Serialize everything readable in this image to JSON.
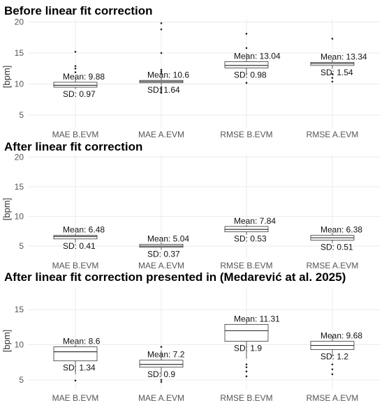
{
  "chart_data": [
    {
      "type": "boxplot",
      "title": "Before linear fit correction",
      "ylabel": "[bpm]",
      "ylim": [
        3,
        20.5
      ],
      "yticks": [
        5,
        10,
        15,
        20
      ],
      "grid": true,
      "categories": [
        "MAE B.EVM",
        "MAE A.EVM",
        "RMSE B.EVM",
        "RMSE A.EVM"
      ],
      "boxes": [
        {
          "q1": 9.5,
          "median": 9.8,
          "q3": 10.3,
          "whisker_low": 9.2,
          "whisker_high": 11.2,
          "outliers": [
            11.9,
            12.5,
            12.9,
            15.2
          ],
          "mean_label": "Mean: 9.88",
          "sd_label": "SD: 0.97"
        },
        {
          "q1": 10.2,
          "median": 10.4,
          "q3": 10.6,
          "whisker_low": 9.8,
          "whisker_high": 11.2,
          "outliers": [
            8.6,
            8.9,
            9.2,
            9.5,
            11.7,
            12.0,
            12.3,
            15.0,
            18.8,
            19.8
          ],
          "mean_label": "Mean: 10.6",
          "sd_label": "SD: 1.64"
        },
        {
          "q1": 12.6,
          "median": 13.0,
          "q3": 13.6,
          "whisker_low": 11.4,
          "whisker_high": 15.0,
          "outliers": [
            10.2,
            15.8,
            18.1
          ],
          "mean_label": "Mean: 13.04",
          "sd_label": "SD: 0.98"
        },
        {
          "q1": 13.0,
          "median": 13.3,
          "q3": 13.5,
          "whisker_low": 12.5,
          "whisker_high": 14.0,
          "outliers": [
            10.4,
            11.0,
            11.6,
            17.3
          ],
          "mean_label": "Mean: 13.34",
          "sd_label": "SD: 1.54"
        }
      ]
    },
    {
      "type": "boxplot",
      "title": "After linear fit correction",
      "ylabel": "[bpm]",
      "ylim": [
        3,
        20.5
      ],
      "yticks": [
        5,
        10,
        15,
        20
      ],
      "grid": true,
      "categories": [
        "MAE B.EVM",
        "MAE A.EVM",
        "RMSE B.EVM",
        "RMSE A.EVM"
      ],
      "boxes": [
        {
          "q1": 6.2,
          "median": 6.6,
          "q3": 6.8,
          "whisker_low": 5.6,
          "whisker_high": 7.1,
          "outliers": [],
          "mean_label": "Mean: 6.48",
          "sd_label": "SD: 0.41"
        },
        {
          "q1": 4.8,
          "median": 5.0,
          "q3": 5.3,
          "whisker_low": 4.4,
          "whisker_high": 5.6,
          "outliers": [],
          "mean_label": "Mean: 5.04",
          "sd_label": "SD: 0.37"
        },
        {
          "q1": 7.4,
          "median": 7.8,
          "q3": 8.3,
          "whisker_low": 6.9,
          "whisker_high": 8.6,
          "outliers": [],
          "mean_label": "Mean: 7.84",
          "sd_label": "SD: 0.53"
        },
        {
          "q1": 6.0,
          "median": 6.4,
          "q3": 6.8,
          "whisker_low": 5.5,
          "whisker_high": 7.2,
          "outliers": [],
          "mean_label": "Mean: 6.38",
          "sd_label": "SD: 0.51"
        }
      ]
    },
    {
      "type": "boxplot",
      "title": "After linear fit correction presented in (Medarević at al. 2025)",
      "ylabel": "[bpm]",
      "ylim": [
        3.5,
        18
      ],
      "yticks": [
        5,
        10,
        15
      ],
      "grid": true,
      "categories": [
        "MAE B.EVM",
        "MAE A.EVM",
        "RMSE B.EVM",
        "RMSE A.EVM"
      ],
      "boxes": [
        {
          "q1": 7.7,
          "median": 9.0,
          "q3": 9.7,
          "whisker_low": 5.8,
          "whisker_high": 10.0,
          "outliers": [
            4.9
          ],
          "mean_label": "Mean: 8.6",
          "sd_label": "SD: 1.34"
        },
        {
          "q1": 6.8,
          "median": 7.2,
          "q3": 7.8,
          "whisker_low": 5.5,
          "whisker_high": 9.2,
          "outliers": [
            4.7,
            5.0,
            9.7
          ],
          "mean_label": "Mean: 7.2",
          "sd_label": "SD: 0.9"
        },
        {
          "q1": 10.5,
          "median": 12.0,
          "q3": 12.9,
          "whisker_low": 8.0,
          "whisker_high": 13.5,
          "outliers": [
            5.5,
            6.2,
            6.8,
            7.2
          ],
          "mean_label": "Mean: 11.31",
          "sd_label": "SD: 1.9"
        },
        {
          "q1": 9.3,
          "median": 9.9,
          "q3": 10.5,
          "whisker_low": 8.3,
          "whisker_high": 11.3,
          "outliers": [
            5.8,
            6.5,
            7.2
          ],
          "mean_label": "Mean: 9.68",
          "sd_label": "SD: 1.2"
        }
      ]
    }
  ]
}
